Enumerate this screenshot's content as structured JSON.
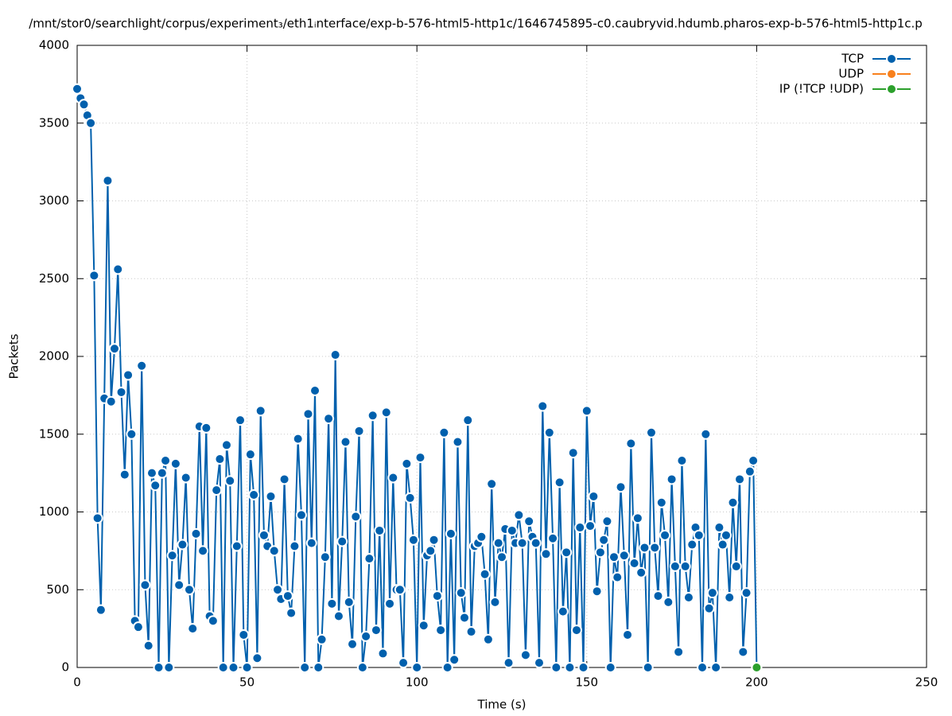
{
  "chart_data": {
    "type": "line",
    "title": "/mnt/stor0/searchlight/corpus/experiment₃/eth1ᵢnterface/exp-b-576-html5-http1c/1646745895-c0.caubryvid.hdumb.pharos-exp-b-576-html5-http1c.p",
    "x_label": "Time (s)",
    "y_label": "Packets",
    "xlim": [
      0,
      250
    ],
    "xticks": [
      0,
      50,
      100,
      150,
      200,
      250
    ],
    "ylim": [
      0,
      4000
    ],
    "yticks": [
      0,
      500,
      1000,
      1500,
      2000,
      2500,
      3000,
      3500,
      4000
    ],
    "grid": true,
    "legend": "top-right",
    "series": [
      {
        "name": "TCP",
        "color": "#0060ad",
        "x": [
          0,
          1,
          2,
          3,
          4,
          5,
          6,
          7,
          8,
          9,
          10,
          11,
          12,
          13,
          14,
          15,
          16,
          17,
          18,
          19,
          20,
          21,
          22,
          23,
          24,
          25,
          26,
          27,
          28,
          29,
          30,
          31,
          32,
          33,
          34,
          35,
          36,
          37,
          38,
          39,
          40,
          41,
          42,
          43,
          44,
          45,
          46,
          47,
          48,
          49,
          50,
          51,
          52,
          53,
          54,
          55,
          56,
          57,
          58,
          59,
          60,
          61,
          62,
          63,
          64,
          65,
          66,
          67,
          68,
          69,
          70,
          71,
          72,
          73,
          74,
          75,
          76,
          77,
          78,
          79,
          80,
          81,
          82,
          83,
          84,
          85,
          86,
          87,
          88,
          89,
          90,
          91,
          92,
          93,
          94,
          95,
          96,
          97,
          98,
          99,
          100,
          101,
          102,
          103,
          104,
          105,
          106,
          107,
          108,
          109,
          110,
          111,
          112,
          113,
          114,
          115,
          116,
          117,
          118,
          119,
          120,
          121,
          122,
          123,
          124,
          125,
          126,
          127,
          128,
          129,
          130,
          131,
          132,
          133,
          134,
          135,
          136,
          137,
          138,
          139,
          140,
          141,
          142,
          143,
          144,
          145,
          146,
          147,
          148,
          149,
          150,
          151,
          152,
          153,
          154,
          155,
          156,
          157,
          158,
          159,
          160,
          161,
          162,
          163,
          164,
          165,
          166,
          167,
          168,
          169,
          170,
          171,
          172,
          173,
          174,
          175,
          176,
          177,
          178,
          179,
          180,
          181,
          182,
          183,
          184,
          185,
          186,
          187,
          188,
          189,
          190,
          191,
          192,
          193,
          194,
          195,
          196,
          197,
          198,
          199,
          200
        ],
        "values": [
          3720,
          3660,
          3620,
          3550,
          3500,
          2520,
          960,
          370,
          1730,
          3130,
          1710,
          2050,
          2560,
          1770,
          1240,
          1880,
          1500,
          300,
          260,
          1940,
          530,
          140,
          1250,
          1170,
          0,
          1250,
          1330,
          0,
          720,
          1310,
          530,
          790,
          1220,
          500,
          250,
          860,
          1550,
          750,
          1540,
          330,
          300,
          1140,
          1340,
          0,
          1430,
          1200,
          0,
          780,
          1590,
          210,
          0,
          1370,
          1110,
          60,
          1650,
          850,
          780,
          1100,
          750,
          500,
          440,
          1210,
          460,
          350,
          780,
          1470,
          980,
          0,
          1630,
          800,
          1780,
          0,
          180,
          710,
          1600,
          410,
          2010,
          330,
          810,
          1450,
          420,
          150,
          970,
          1520,
          0,
          200,
          700,
          1620,
          240,
          880,
          90,
          1640,
          410,
          1220,
          500,
          500,
          30,
          1310,
          1090,
          820,
          0,
          1350,
          270,
          720,
          750,
          820,
          460,
          240,
          1510,
          0,
          860,
          50,
          1450,
          480,
          320,
          1590,
          230,
          780,
          800,
          840,
          600,
          180,
          1180,
          420,
          800,
          710,
          890,
          30,
          880,
          800,
          980,
          800,
          80,
          940,
          840,
          800,
          30,
          1680,
          730,
          1510,
          830,
          0,
          1190,
          360,
          740,
          0,
          1380,
          240,
          900,
          0,
          1650,
          910,
          1100,
          490,
          740,
          820,
          940,
          0,
          710,
          580,
          1160,
          720,
          210,
          1440,
          670,
          960,
          610,
          770,
          0,
          1510,
          770,
          460,
          1060,
          850,
          420,
          1210,
          650,
          100,
          1330,
          650,
          450,
          790,
          900,
          850,
          0,
          1500,
          380,
          480,
          0,
          900,
          790,
          850,
          450,
          1060,
          650,
          1210,
          100,
          480,
          1260,
          1330,
          0
        ]
      },
      {
        "name": "UDP",
        "color": "#f8801c",
        "x": [
          200
        ],
        "values": [
          0
        ]
      },
      {
        "name": "IP (!TCP  !UDP)",
        "color": "#2ca02c",
        "x": [
          200
        ],
        "values": [
          0
        ]
      }
    ]
  }
}
